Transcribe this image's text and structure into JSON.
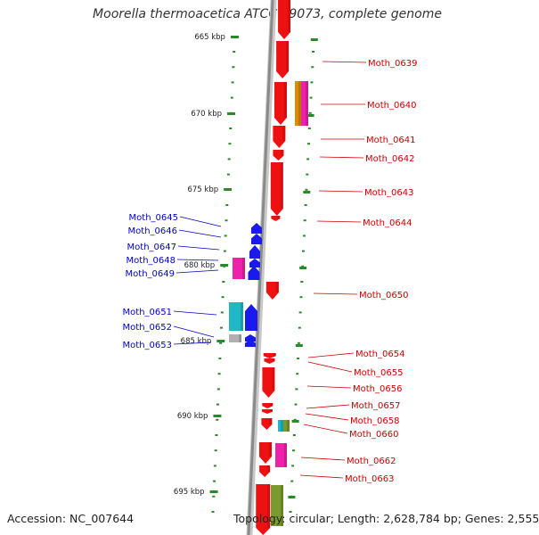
{
  "title": "Moorella thermoacetica ATCC 39073, complete genome",
  "footer": {
    "accession": "Accession: NC_007644",
    "topology": "Topology: circular; Length: 2,628,784 bp; Genes: 2,555"
  },
  "scale_ticks": [
    "665 kbp",
    "670 kbp",
    "675 kbp",
    "680 kbp",
    "685 kbp",
    "690 kbp",
    "695 kbp"
  ],
  "colors": {
    "forward_label": "#cc0000",
    "reverse_label": "#0000cc",
    "ruler": "#2a8a2a",
    "backbone": "#8a8a8a",
    "gene_red": "#ee1111",
    "gene_blue": "#1a1aee",
    "gene_magenta": "#ee22aa",
    "gene_cyan": "#20b8c8",
    "gene_olive": "#7a9a30",
    "gene_orange": "#e08a00",
    "gene_grey": "#b0b0b0"
  },
  "forward_genes": [
    "Moth_0639",
    "Moth_0640",
    "Moth_0641",
    "Moth_0642",
    "Moth_0643",
    "Moth_0644",
    "Moth_0650",
    "Moth_0654",
    "Moth_0655",
    "Moth_0656",
    "Moth_0657",
    "Moth_0658",
    "Moth_0660",
    "Moth_0662",
    "Moth_0663"
  ],
  "reverse_genes": [
    "Moth_0645",
    "Moth_0646",
    "Moth_0647",
    "Moth_0648",
    "Moth_0649",
    "Moth_0651",
    "Moth_0652",
    "Moth_0653"
  ]
}
